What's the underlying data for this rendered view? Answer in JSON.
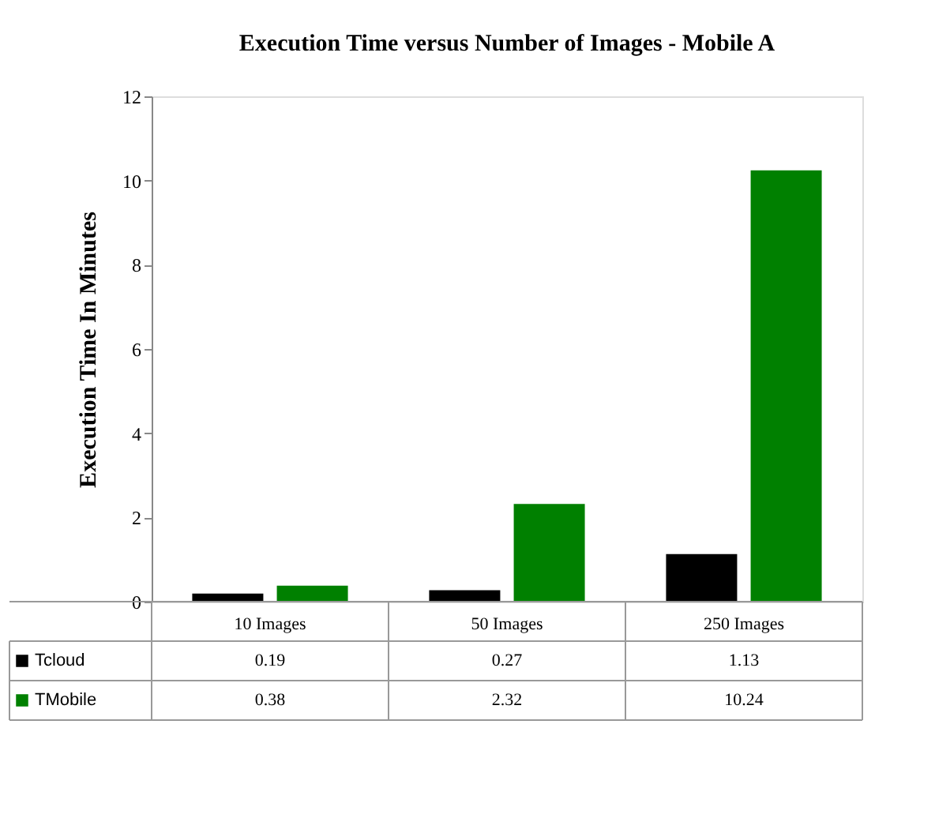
{
  "chart_data": {
    "type": "bar",
    "title": "Execution Time versus Number of Images - Mobile A",
    "ylabel": "Execution Time In Minutes",
    "categories": [
      "10 Images",
      "50 Images",
      "250 Images"
    ],
    "series": [
      {
        "name": "Tcloud",
        "color": "#000000",
        "values": [
          0.19,
          0.27,
          1.13
        ]
      },
      {
        "name": "TMobile",
        "color": "#008000",
        "values": [
          0.38,
          2.32,
          10.24
        ]
      }
    ],
    "ylim": [
      0,
      12
    ],
    "yticks": [
      0,
      2,
      4,
      6,
      8,
      10,
      12
    ],
    "grid": false,
    "legend": "bottom",
    "data_labels": true
  }
}
